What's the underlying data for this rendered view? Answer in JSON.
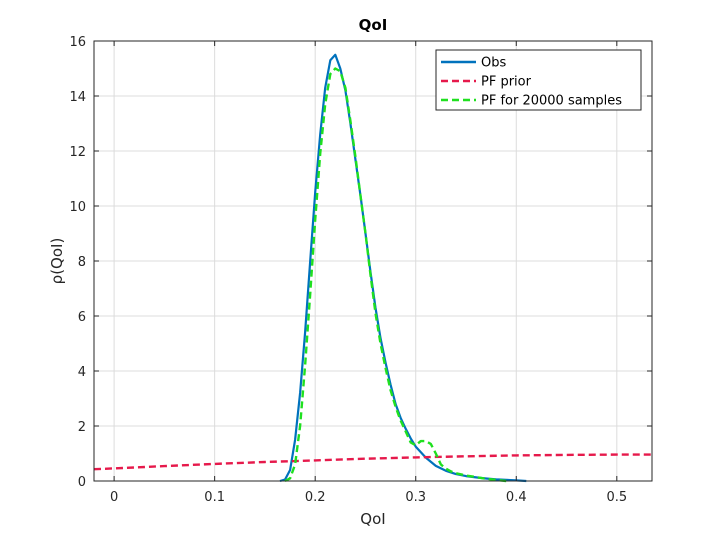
{
  "chart_data": {
    "type": "line",
    "title": "QoI",
    "xlabel": "QoI",
    "ylabel": "ρ(QoI)",
    "xlim": [
      -0.02,
      0.535
    ],
    "ylim": [
      0,
      16
    ],
    "xticks": [
      0,
      0.1,
      0.2,
      0.3,
      0.4,
      0.5
    ],
    "xtick_labels": [
      "0",
      "0.1",
      "0.2",
      "0.3",
      "0.4",
      "0.5"
    ],
    "yticks": [
      0,
      2,
      4,
      6,
      8,
      10,
      12,
      14,
      16
    ],
    "ytick_labels": [
      "0",
      "2",
      "4",
      "6",
      "8",
      "10",
      "12",
      "14",
      "16"
    ],
    "grid": true,
    "legend_position": "top-right",
    "series": [
      {
        "name": "Obs",
        "color": "#0072bd",
        "style": "solid",
        "x": [
          0.165,
          0.17,
          0.175,
          0.18,
          0.185,
          0.19,
          0.195,
          0.2,
          0.205,
          0.21,
          0.215,
          0.22,
          0.225,
          0.23,
          0.235,
          0.24,
          0.245,
          0.25,
          0.255,
          0.26,
          0.265,
          0.27,
          0.275,
          0.28,
          0.285,
          0.29,
          0.295,
          0.3,
          0.31,
          0.32,
          0.33,
          0.34,
          0.35,
          0.36,
          0.37,
          0.38,
          0.39,
          0.4,
          0.41
        ],
        "y": [
          0.0,
          0.05,
          0.4,
          1.5,
          3.2,
          5.4,
          8.0,
          10.5,
          12.6,
          14.3,
          15.3,
          15.5,
          15.0,
          14.2,
          13.0,
          11.7,
          10.4,
          9.0,
          7.6,
          6.3,
          5.2,
          4.3,
          3.5,
          2.8,
          2.3,
          1.9,
          1.55,
          1.25,
          0.85,
          0.55,
          0.37,
          0.25,
          0.18,
          0.13,
          0.09,
          0.06,
          0.04,
          0.02,
          0.0
        ]
      },
      {
        "name": "PF prior",
        "color": "#e6194b",
        "style": "dashed",
        "x": [
          -0.02,
          0.0,
          0.05,
          0.1,
          0.15,
          0.2,
          0.25,
          0.3,
          0.35,
          0.4,
          0.45,
          0.5,
          0.535
        ],
        "y": [
          0.43,
          0.46,
          0.54,
          0.62,
          0.69,
          0.75,
          0.81,
          0.86,
          0.9,
          0.93,
          0.95,
          0.96,
          0.96
        ]
      },
      {
        "name": "PF for 20000 samples",
        "color": "#1fe01f",
        "style": "dashed",
        "x": [
          0.17,
          0.175,
          0.18,
          0.185,
          0.19,
          0.195,
          0.2,
          0.205,
          0.21,
          0.215,
          0.22,
          0.225,
          0.23,
          0.235,
          0.24,
          0.245,
          0.25,
          0.255,
          0.26,
          0.265,
          0.27,
          0.275,
          0.28,
          0.285,
          0.29,
          0.295,
          0.3,
          0.305,
          0.31,
          0.315,
          0.32,
          0.325,
          0.33,
          0.335,
          0.34,
          0.35,
          0.36,
          0.37,
          0.38,
          0.39
        ],
        "y": [
          0.0,
          0.1,
          0.6,
          2.0,
          4.2,
          6.8,
          9.5,
          11.9,
          13.7,
          14.8,
          15.0,
          14.9,
          14.3,
          13.1,
          11.8,
          10.4,
          9.0,
          7.5,
          6.1,
          5.0,
          4.1,
          3.3,
          2.7,
          2.2,
          1.8,
          1.4,
          1.3,
          1.45,
          1.45,
          1.35,
          1.0,
          0.6,
          0.45,
          0.35,
          0.28,
          0.2,
          0.14,
          0.08,
          0.04,
          0.0
        ]
      }
    ]
  }
}
